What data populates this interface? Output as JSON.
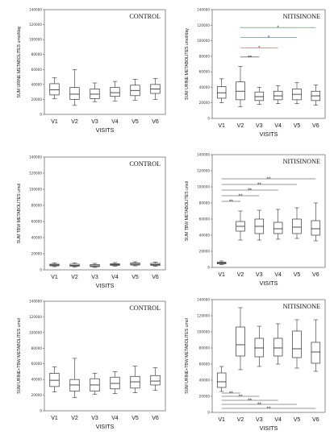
{
  "chart_data": [
    {
      "type": "box",
      "title": "CONTROL",
      "ylabel": "SUM URINE METABOLITES umol/day",
      "xlabel": "VISITS",
      "ylim": [
        0,
        140000
      ],
      "yticks": [
        0,
        20000,
        40000,
        60000,
        80000,
        100000,
        120000,
        140000
      ],
      "ytick_labels": [
        "0",
        "20000",
        "40000",
        "60000",
        "80000",
        "100000",
        "120000",
        "140000"
      ],
      "categories": [
        "V1",
        "V2",
        "V3",
        "V4",
        "V5",
        "V6"
      ],
      "boxes": [
        {
          "min": 21000,
          "q1": 26000,
          "median": 33000,
          "q3": 41000,
          "max": 49000
        },
        {
          "min": 12000,
          "q1": 20000,
          "median": 27000,
          "q3": 36000,
          "max": 60000
        },
        {
          "min": 17000,
          "q1": 21000,
          "median": 27000,
          "q3": 34000,
          "max": 42000
        },
        {
          "min": 18000,
          "q1": 24000,
          "median": 29000,
          "q3": 36000,
          "max": 44000
        },
        {
          "min": 19000,
          "q1": 25000,
          "median": 32000,
          "q3": 39000,
          "max": 47000
        },
        {
          "min": 20000,
          "q1": 28000,
          "median": 34000,
          "q3": 40000,
          "max": 48000
        }
      ],
      "significance": []
    },
    {
      "type": "box",
      "title": "NITISINONE",
      "ylabel": "SUM URINE METABOLITES umol/day",
      "xlabel": "VISITS",
      "ylim": [
        0,
        140000
      ],
      "yticks": [
        0,
        20000,
        40000,
        60000,
        80000,
        100000,
        120000,
        140000
      ],
      "ytick_labels": [
        "0",
        "20000",
        "40000",
        "60000",
        "80000",
        "100000",
        "120000",
        "140000"
      ],
      "categories": [
        "V1",
        "V2",
        "V3",
        "V4",
        "V5",
        "V6"
      ],
      "boxes": [
        {
          "min": 20000,
          "q1": 26000,
          "median": 33000,
          "q3": 41000,
          "max": 51000
        },
        {
          "min": 15000,
          "q1": 24000,
          "median": 35000,
          "q3": 47000,
          "max": 67000
        },
        {
          "min": 18000,
          "q1": 23000,
          "median": 28000,
          "q3": 34000,
          "max": 40000
        },
        {
          "min": 19000,
          "q1": 24000,
          "median": 29000,
          "q3": 35000,
          "max": 42000
        },
        {
          "min": 19000,
          "q1": 24000,
          "median": 31000,
          "q3": 38000,
          "max": 46000
        },
        {
          "min": 17000,
          "q1": 23000,
          "median": 29000,
          "q3": 35000,
          "max": 43000
        }
      ],
      "significance": [
        {
          "from": 1,
          "to": 2,
          "y": 79000,
          "label": "**",
          "color": "#333333"
        },
        {
          "from": 1,
          "to": 3,
          "y": 91000,
          "label": "*",
          "color": "#c0392b"
        },
        {
          "from": 1,
          "to": 4,
          "y": 104000,
          "label": "*",
          "color": "#4a7ab0"
        },
        {
          "from": 1,
          "to": 5,
          "y": 117000,
          "label": "*",
          "color": "#3c8c4a"
        }
      ]
    },
    {
      "type": "box",
      "title": "CONTROL",
      "ylabel": "SUM TBW METABOLITES umol",
      "xlabel": "VISITS",
      "ylim": [
        0,
        140000
      ],
      "yticks": [
        0,
        20000,
        40000,
        60000,
        80000,
        100000,
        120000,
        140000
      ],
      "ytick_labels": [
        "0",
        "20000",
        "40000",
        "60000",
        "80000",
        "100000",
        "120000",
        "140000"
      ],
      "categories": [
        "V1",
        "V2",
        "V3",
        "V4",
        "V5",
        "V6"
      ],
      "boxes": [
        {
          "min": 4000,
          "q1": 5000,
          "median": 6000,
          "q3": 7000,
          "max": 8500
        },
        {
          "min": 3500,
          "q1": 4500,
          "median": 5500,
          "q3": 7000,
          "max": 8500
        },
        {
          "min": 3000,
          "q1": 4000,
          "median": 5000,
          "q3": 6500,
          "max": 8000
        },
        {
          "min": 4500,
          "q1": 5500,
          "median": 6500,
          "q3": 7500,
          "max": 9000
        },
        {
          "min": 5000,
          "q1": 6000,
          "median": 7000,
          "q3": 8500,
          "max": 10000
        },
        {
          "min": 4500,
          "q1": 5500,
          "median": 6500,
          "q3": 8000,
          "max": 9500
        }
      ],
      "significance": []
    },
    {
      "type": "box",
      "title": "NITISINONE",
      "ylabel": "SUM TBW METABOLITES umol",
      "xlabel": "VISITS",
      "ylim": [
        0,
        140000
      ],
      "yticks": [
        0,
        20000,
        40000,
        60000,
        80000,
        100000,
        120000,
        140000
      ],
      "ytick_labels": [
        "0",
        "20000",
        "40000",
        "60000",
        "80000",
        "100000",
        "120000",
        "140000"
      ],
      "categories": [
        "V1",
        "V2",
        "V3",
        "V4",
        "V5",
        "V6"
      ],
      "boxes": [
        {
          "min": 3500,
          "q1": 4500,
          "median": 5500,
          "q3": 6500,
          "max": 8000
        },
        {
          "min": 34000,
          "q1": 45000,
          "median": 51000,
          "q3": 57000,
          "max": 70000
        },
        {
          "min": 34000,
          "q1": 42000,
          "median": 51000,
          "q3": 60000,
          "max": 71000
        },
        {
          "min": 35000,
          "q1": 42000,
          "median": 48000,
          "q3": 56000,
          "max": 72000
        },
        {
          "min": 36000,
          "q1": 42000,
          "median": 50000,
          "q3": 60000,
          "max": 74000
        },
        {
          "min": 33000,
          "q1": 40000,
          "median": 48000,
          "q3": 58000,
          "max": 80000
        }
      ],
      "significance": [
        {
          "from": 0,
          "to": 1,
          "y": 82000,
          "label": "**",
          "color": "#333333"
        },
        {
          "from": 0,
          "to": 2,
          "y": 89000,
          "label": "**",
          "color": "#333333"
        },
        {
          "from": 0,
          "to": 3,
          "y": 96000,
          "label": "**",
          "color": "#333333"
        },
        {
          "from": 0,
          "to": 4,
          "y": 103000,
          "label": "**",
          "color": "#333333"
        },
        {
          "from": 0,
          "to": 5,
          "y": 110000,
          "label": "**",
          "color": "#333333"
        }
      ]
    },
    {
      "type": "box",
      "title": "CONTROL",
      "ylabel": "SUM URINE+TBW METABOLITES umol",
      "xlabel": "VISITS",
      "ylim": [
        0,
        140000
      ],
      "yticks": [
        0,
        20000,
        40000,
        60000,
        80000,
        100000,
        120000,
        140000
      ],
      "ytick_labels": [
        "0",
        "20000",
        "40000",
        "60000",
        "80000",
        "100000",
        "120000",
        "140000"
      ],
      "categories": [
        "V1",
        "V2",
        "V3",
        "V4",
        "V5",
        "V6"
      ],
      "boxes": [
        {
          "min": 24000,
          "q1": 31000,
          "median": 39000,
          "q3": 48000,
          "max": 56000
        },
        {
          "min": 17000,
          "q1": 25000,
          "median": 33000,
          "q3": 40000,
          "max": 67000
        },
        {
          "min": 21000,
          "q1": 25000,
          "median": 33000,
          "q3": 41000,
          "max": 48000
        },
        {
          "min": 22000,
          "q1": 28000,
          "median": 35000,
          "q3": 43000,
          "max": 50000
        },
        {
          "min": 23000,
          "q1": 29000,
          "median": 37000,
          "q3": 44000,
          "max": 57000
        },
        {
          "min": 26000,
          "q1": 33000,
          "median": 38000,
          "q3": 45000,
          "max": 55000
        }
      ],
      "significance": []
    },
    {
      "type": "box",
      "title": "NITISINONE",
      "ylabel": "SUM URINE+TBW METABOLITES umol",
      "xlabel": "VISITS",
      "ylim": [
        0,
        140000
      ],
      "yticks": [
        0,
        20000,
        40000,
        60000,
        80000,
        100000,
        120000,
        140000
      ],
      "ytick_labels": [
        "0",
        "20000",
        "40000",
        "60000",
        "80000",
        "100000",
        "120000",
        "140000"
      ],
      "categories": [
        "V1",
        "V2",
        "V3",
        "V4",
        "V5",
        "V6"
      ],
      "boxes": [
        {
          "min": 26000,
          "q1": 31000,
          "median": 38000,
          "q3": 49000,
          "max": 57000
        },
        {
          "min": 53000,
          "q1": 70000,
          "median": 84000,
          "q3": 106000,
          "max": 130000
        },
        {
          "min": 57000,
          "q1": 69000,
          "median": 80000,
          "q3": 92000,
          "max": 107000
        },
        {
          "min": 60000,
          "q1": 70000,
          "median": 80000,
          "q3": 92000,
          "max": 110000
        },
        {
          "min": 55000,
          "q1": 68000,
          "median": 79000,
          "q3": 101000,
          "max": 115000
        },
        {
          "min": 51000,
          "q1": 61000,
          "median": 75000,
          "q3": 87000,
          "max": 115000
        }
      ],
      "significance": [
        {
          "from": 0,
          "to": 1,
          "y": 24000,
          "label": "**",
          "color": "#333333"
        },
        {
          "from": 0,
          "to": 2,
          "y": 20000,
          "label": "**",
          "color": "#333333"
        },
        {
          "from": 0,
          "to": 3,
          "y": 15000,
          "label": "**",
          "color": "#333333"
        },
        {
          "from": 0,
          "to": 4,
          "y": 10000,
          "label": "**",
          "color": "#333333"
        },
        {
          "from": 0,
          "to": 5,
          "y": 5000,
          "label": "**",
          "color": "#333333"
        }
      ]
    }
  ]
}
